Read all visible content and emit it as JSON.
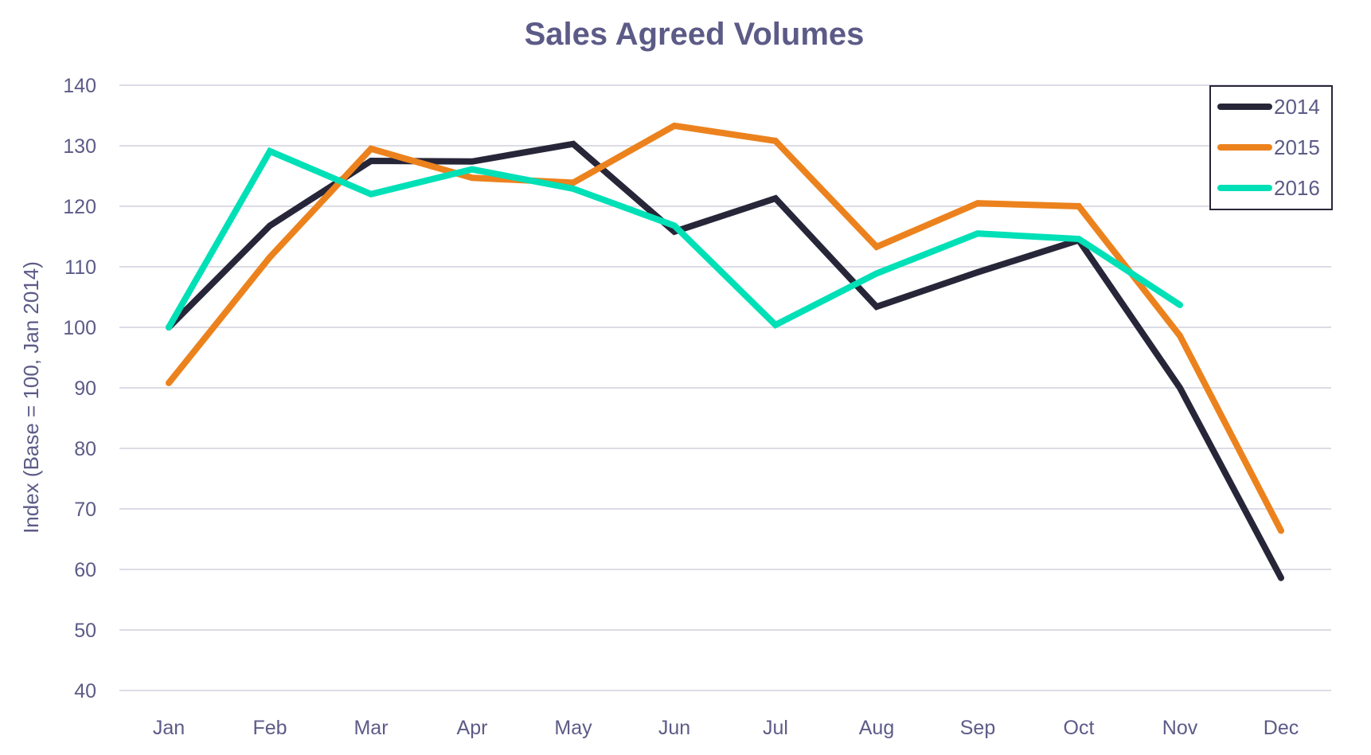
{
  "chart_data": {
    "type": "line",
    "title": "Sales Agreed Volumes",
    "xlabel": "",
    "ylabel": "Index (Base = 100, Jan 2014)",
    "ylim": [
      40,
      140
    ],
    "yticks": [
      40,
      50,
      60,
      70,
      80,
      90,
      100,
      110,
      120,
      130,
      140
    ],
    "ytick_labels": [
      "40",
      "50",
      "60",
      "70",
      "80",
      "90",
      "100",
      "110",
      "120",
      "130",
      "140"
    ],
    "grid": true,
    "legend_position": "top-right",
    "categories": [
      "Jan",
      "Feb",
      "Mar",
      "Apr",
      "May",
      "Jun",
      "Jul",
      "Aug",
      "Sep",
      "Oct",
      "Nov",
      "Dec"
    ],
    "series": [
      {
        "name": "2014",
        "color": "#272639",
        "values": [
          100,
          116.8,
          127.5,
          127.4,
          130.3,
          115.8,
          121.3,
          103.4,
          109.1,
          114.4,
          90.0,
          58.6
        ]
      },
      {
        "name": "2015",
        "color": "#ec821d",
        "values": [
          90.8,
          111.6,
          129.5,
          124.7,
          123.9,
          133.3,
          130.8,
          113.3,
          120.5,
          120.0,
          98.6,
          66.4
        ]
      },
      {
        "name": "2016",
        "color": "#00e0b7",
        "values": [
          100,
          129.1,
          122.0,
          126.1,
          122.9,
          116.8,
          100.4,
          108.9,
          115.5,
          114.6,
          103.7,
          null
        ]
      }
    ]
  }
}
